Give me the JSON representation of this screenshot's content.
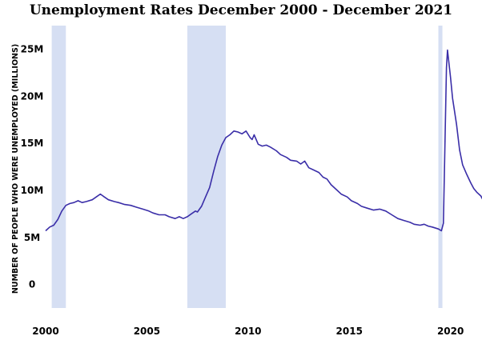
{
  "chart_data": {
    "type": "line",
    "title": "Unemployment Rates December 2000 - December 2021",
    "xlabel": "",
    "ylabel": "NUMBER OF PEOPLE WHO WERE UNEMPLOYED (MILLIONS)",
    "x_range": [
      2000,
      2021.2
    ],
    "y_range": [
      -2.5,
      27.5
    ],
    "x_ticks": [
      {
        "value": 2000,
        "label": "2000"
      },
      {
        "value": 2005,
        "label": "2005"
      },
      {
        "value": 2010,
        "label": "2010"
      },
      {
        "value": 2015,
        "label": "2015"
      },
      {
        "value": 2020,
        "label": "2020"
      }
    ],
    "y_ticks": [
      {
        "value": 0,
        "label": "0"
      },
      {
        "value": 5,
        "label": "5M"
      },
      {
        "value": 10,
        "label": "10M"
      },
      {
        "value": 15,
        "label": "15M"
      },
      {
        "value": 20,
        "label": "20M"
      },
      {
        "value": 25,
        "label": "25M"
      }
    ],
    "grid": false,
    "recession_shading": [
      {
        "start": 2000.3,
        "end": 2001.0
      },
      {
        "start": 2007.0,
        "end": 2008.9
      },
      {
        "start": 2019.4,
        "end": 2019.6
      }
    ],
    "series": [
      {
        "name": "",
        "color": "#3a2ea8",
        "points": [
          [
            2000.0,
            5.7
          ],
          [
            2000.2,
            6.1
          ],
          [
            2000.4,
            6.3
          ],
          [
            2000.6,
            6.9
          ],
          [
            2000.8,
            7.8
          ],
          [
            2001.0,
            8.4
          ],
          [
            2001.2,
            8.6
          ],
          [
            2001.4,
            8.7
          ],
          [
            2001.6,
            8.9
          ],
          [
            2001.8,
            8.7
          ],
          [
            2002.0,
            8.8
          ],
          [
            2002.3,
            9.0
          ],
          [
            2002.5,
            9.3
          ],
          [
            2002.7,
            9.6
          ],
          [
            2002.9,
            9.3
          ],
          [
            2003.1,
            9.0
          ],
          [
            2003.4,
            8.8
          ],
          [
            2003.6,
            8.7
          ],
          [
            2003.9,
            8.5
          ],
          [
            2004.2,
            8.4
          ],
          [
            2004.5,
            8.2
          ],
          [
            2004.8,
            8.0
          ],
          [
            2005.1,
            7.8
          ],
          [
            2005.3,
            7.6
          ],
          [
            2005.6,
            7.4
          ],
          [
            2005.9,
            7.4
          ],
          [
            2006.1,
            7.2
          ],
          [
            2006.4,
            7.0
          ],
          [
            2006.6,
            7.2
          ],
          [
            2006.8,
            7.0
          ],
          [
            2007.0,
            7.2
          ],
          [
            2007.2,
            7.5
          ],
          [
            2007.4,
            7.8
          ],
          [
            2007.5,
            7.7
          ],
          [
            2007.7,
            8.3
          ],
          [
            2007.9,
            9.3
          ],
          [
            2008.1,
            10.3
          ],
          [
            2008.3,
            12.0
          ],
          [
            2008.5,
            13.6
          ],
          [
            2008.7,
            14.8
          ],
          [
            2008.9,
            15.6
          ],
          [
            2009.1,
            15.9
          ],
          [
            2009.3,
            16.3
          ],
          [
            2009.5,
            16.2
          ],
          [
            2009.7,
            16.0
          ],
          [
            2009.9,
            16.3
          ],
          [
            2010.1,
            15.6
          ],
          [
            2010.2,
            15.4
          ],
          [
            2010.3,
            15.9
          ],
          [
            2010.5,
            14.9
          ],
          [
            2010.7,
            14.7
          ],
          [
            2010.9,
            14.8
          ],
          [
            2011.1,
            14.6
          ],
          [
            2011.4,
            14.2
          ],
          [
            2011.6,
            13.8
          ],
          [
            2011.9,
            13.5
          ],
          [
            2012.1,
            13.2
          ],
          [
            2012.4,
            13.1
          ],
          [
            2012.6,
            12.8
          ],
          [
            2012.8,
            13.1
          ],
          [
            2013.0,
            12.4
          ],
          [
            2013.2,
            12.2
          ],
          [
            2013.5,
            11.9
          ],
          [
            2013.7,
            11.4
          ],
          [
            2013.9,
            11.2
          ],
          [
            2014.1,
            10.6
          ],
          [
            2014.4,
            10.0
          ],
          [
            2014.6,
            9.6
          ],
          [
            2014.9,
            9.3
          ],
          [
            2015.1,
            8.9
          ],
          [
            2015.4,
            8.6
          ],
          [
            2015.6,
            8.3
          ],
          [
            2015.9,
            8.1
          ],
          [
            2016.2,
            7.9
          ],
          [
            2016.5,
            8.0
          ],
          [
            2016.8,
            7.8
          ],
          [
            2017.1,
            7.4
          ],
          [
            2017.4,
            7.0
          ],
          [
            2017.7,
            6.8
          ],
          [
            2018.0,
            6.6
          ],
          [
            2018.2,
            6.4
          ],
          [
            2018.5,
            6.3
          ],
          [
            2018.7,
            6.4
          ],
          [
            2018.9,
            6.2
          ],
          [
            2019.1,
            6.1
          ],
          [
            2019.4,
            5.9
          ],
          [
            2019.55,
            5.7
          ],
          [
            2019.65,
            6.5
          ],
          [
            2019.8,
            23.0
          ],
          [
            2019.85,
            24.9
          ],
          [
            2020.0,
            22.0
          ],
          [
            2020.1,
            19.8
          ],
          [
            2020.3,
            17.0
          ],
          [
            2020.45,
            14.3
          ],
          [
            2020.6,
            12.7
          ],
          [
            2020.8,
            11.7
          ],
          [
            2021.0,
            10.8
          ],
          [
            2021.15,
            10.2
          ],
          [
            2021.3,
            9.8
          ],
          [
            2021.5,
            9.4
          ],
          [
            2021.7,
            8.6
          ],
          [
            2021.85,
            7.8
          ],
          [
            2022.0,
            6.9
          ],
          [
            2022.1,
            6.3
          ]
        ]
      }
    ]
  }
}
